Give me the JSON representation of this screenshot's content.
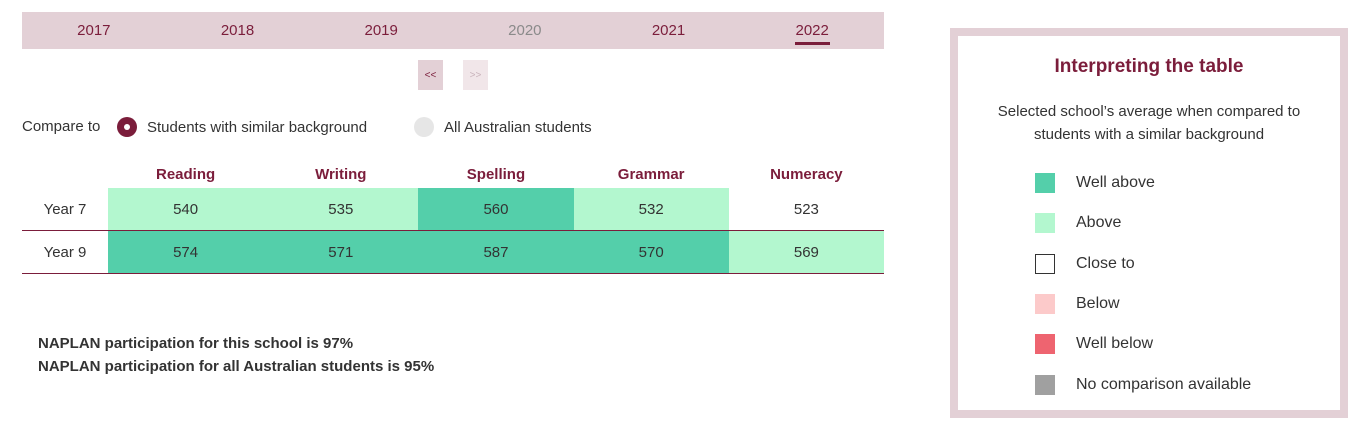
{
  "years": [
    {
      "label": "2017",
      "state": "normal"
    },
    {
      "label": "2018",
      "state": "normal"
    },
    {
      "label": "2019",
      "state": "normal"
    },
    {
      "label": "2020",
      "state": "disabled"
    },
    {
      "label": "2021",
      "state": "normal"
    },
    {
      "label": "2022",
      "state": "active"
    }
  ],
  "pager": {
    "prev": "<<",
    "next": ">>"
  },
  "compare": {
    "label": "Compare to",
    "options": [
      {
        "label": "Students with similar background",
        "selected": true
      },
      {
        "label": "All Australian students",
        "selected": false
      }
    ]
  },
  "table": {
    "headers": [
      "Reading",
      "Writing",
      "Spelling",
      "Grammar",
      "Numeracy"
    ],
    "rows": [
      {
        "label": "Year 7",
        "values": [
          "540",
          "535",
          "560",
          "532",
          "523"
        ],
        "ratings": [
          "Above",
          "Above",
          "Well above",
          "Above",
          "Close to"
        ]
      },
      {
        "label": "Year 9",
        "values": [
          "574",
          "571",
          "587",
          "570",
          "569"
        ],
        "ratings": [
          "Well above",
          "Well above",
          "Well above",
          "Well above",
          "Above"
        ]
      }
    ]
  },
  "participation": {
    "school": "NAPLAN participation for this school is 97%",
    "all": "NAPLAN participation for all Australian students is 95%"
  },
  "legend": {
    "title": "Interpreting the table",
    "description": "Selected school’s average when compared to students with a similar background",
    "items": [
      {
        "label": "Well above",
        "color": "#54cfaa"
      },
      {
        "label": "Above",
        "color": "#b3f7cf"
      },
      {
        "label": "Close to",
        "color": "#ffffff"
      },
      {
        "label": "Below",
        "color": "#fccaca"
      },
      {
        "label": "Well below",
        "color": "#ee6470"
      },
      {
        "label": "No comparison available",
        "color": "#a0a0a0"
      }
    ]
  },
  "colors": {
    "brand": "#7b1d3b",
    "tab_bg": "#e3d0d6"
  }
}
